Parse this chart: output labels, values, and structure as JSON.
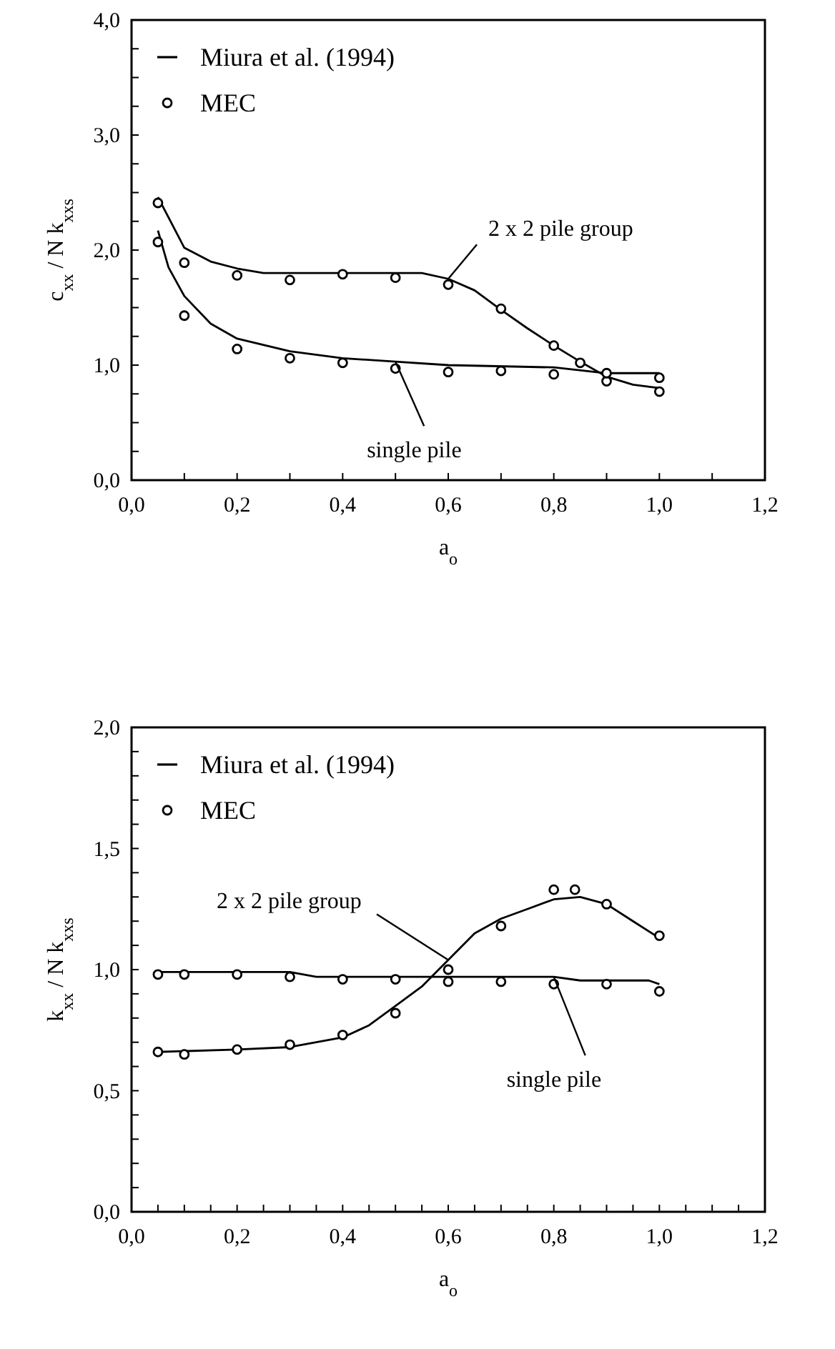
{
  "chart_data": [
    {
      "type": "line",
      "xlabel": "a$_{o}$",
      "ylabel": "c$_{xx}$ / N k$_{xxs}$",
      "xlim": [
        0,
        1.2
      ],
      "ylim": [
        0,
        4
      ],
      "xticks": [
        {
          "value": 0,
          "label": "0,0"
        },
        {
          "value": 0.1,
          "label": null
        },
        {
          "value": 0.2,
          "label": "0,2"
        },
        {
          "value": 0.3,
          "label": null
        },
        {
          "value": 0.4,
          "label": "0,4"
        },
        {
          "value": 0.5,
          "label": null
        },
        {
          "value": 0.6,
          "label": "0,6"
        },
        {
          "value": 0.7,
          "label": null
        },
        {
          "value": 0.8,
          "label": "0,8"
        },
        {
          "value": 0.9,
          "label": null
        },
        {
          "value": 1.0,
          "label": "1,0"
        },
        {
          "value": 1.1,
          "label": null
        },
        {
          "value": 1.2,
          "label": "1,2"
        }
      ],
      "yticks": [
        {
          "value": 0,
          "label": "0,0"
        },
        {
          "value": 0.25,
          "label": null
        },
        {
          "value": 0.5,
          "label": null
        },
        {
          "value": 0.75,
          "label": null
        },
        {
          "value": 1,
          "label": "1,0"
        },
        {
          "value": 1.25,
          "label": null
        },
        {
          "value": 1.5,
          "label": null
        },
        {
          "value": 1.75,
          "label": null
        },
        {
          "value": 2,
          "label": "2,0"
        },
        {
          "value": 2.25,
          "label": null
        },
        {
          "value": 2.5,
          "label": null
        },
        {
          "value": 2.75,
          "label": null
        },
        {
          "value": 3,
          "label": "3,0"
        },
        {
          "value": 3.25,
          "label": null
        },
        {
          "value": 3.5,
          "label": null
        },
        {
          "value": 3.75,
          "label": null
        },
        {
          "value": 4,
          "label": "4,0"
        }
      ],
      "legend": "top left",
      "grid": false,
      "series": [
        {
          "name": "Miura et al. (1994)",
          "marker": "none",
          "color": "#000000",
          "x": [
            0.05,
            0.1,
            0.15,
            0.2,
            0.25,
            0.5,
            0.55,
            0.6,
            0.65,
            0.7,
            0.75,
            0.8,
            0.85,
            0.9,
            0.95,
            1.0
          ],
          "values": [
            2.46,
            2.02,
            1.9,
            1.84,
            1.8,
            1.8,
            1.8,
            1.75,
            1.65,
            1.48,
            1.32,
            1.17,
            1.03,
            0.9,
            0.83,
            0.8
          ]
        },
        {
          "marker": "none",
          "color": "#000000",
          "x": [
            0.05,
            0.07,
            0.1,
            0.15,
            0.2,
            0.3,
            0.4,
            0.5,
            0.6,
            0.8,
            0.9,
            1.0
          ],
          "values": [
            2.17,
            1.85,
            1.6,
            1.36,
            1.23,
            1.12,
            1.06,
            1.03,
            1.0,
            0.98,
            0.93,
            0.93
          ]
        },
        {
          "name": "MEC",
          "type": "scatter",
          "marker": "circle",
          "color": "#000000",
          "x": [
            0.05,
            0.1,
            0.2,
            0.3,
            0.4,
            0.5,
            0.6,
            0.7,
            0.8,
            0.85,
            0.9,
            1.0
          ],
          "values": [
            2.41,
            1.89,
            1.78,
            1.74,
            1.79,
            1.76,
            1.7,
            1.49,
            1.17,
            1.02,
            0.86,
            0.77
          ]
        },
        {
          "type": "scatter",
          "marker": "circle",
          "color": "#000000",
          "x": [
            0.05,
            0.1,
            0.2,
            0.3,
            0.4,
            0.5,
            0.6,
            0.7,
            0.8,
            0.9,
            1.0
          ],
          "values": [
            2.07,
            1.43,
            1.14,
            1.06,
            1.02,
            0.97,
            0.94,
            0.95,
            0.92,
            0.93,
            0.89
          ]
        }
      ],
      "annotations": [
        {
          "text": "2 x 2 pile group",
          "x": 0.6,
          "y": 1.75
        },
        {
          "text": "single pile",
          "x": 0.5,
          "y": 1.03
        }
      ]
    },
    {
      "type": "line",
      "xlabel": "a$_{o}$",
      "ylabel": "k$_{xx}$ / N k$_{xxs}$",
      "xlim": [
        0,
        1.2
      ],
      "ylim": [
        0,
        2
      ],
      "xticks": [
        {
          "value": 0,
          "label": "0,0"
        },
        {
          "value": 0.05,
          "label": null
        },
        {
          "value": 0.1,
          "label": null
        },
        {
          "value": 0.15,
          "label": null
        },
        {
          "value": 0.2,
          "label": "0,2"
        },
        {
          "value": 0.25,
          "label": null
        },
        {
          "value": 0.3,
          "label": null
        },
        {
          "value": 0.35,
          "label": null
        },
        {
          "value": 0.4,
          "label": "0,4"
        },
        {
          "value": 0.45,
          "label": null
        },
        {
          "value": 0.5,
          "label": null
        },
        {
          "value": 0.55,
          "label": null
        },
        {
          "value": 0.6,
          "label": "0,6"
        },
        {
          "value": 0.65,
          "label": null
        },
        {
          "value": 0.7,
          "label": null
        },
        {
          "value": 0.75,
          "label": null
        },
        {
          "value": 0.8,
          "label": "0,8"
        },
        {
          "value": 0.85,
          "label": null
        },
        {
          "value": 0.9,
          "label": null
        },
        {
          "value": 0.95,
          "label": null
        },
        {
          "value": 1.0,
          "label": "1,0"
        },
        {
          "value": 1.05,
          "label": null
        },
        {
          "value": 1.1,
          "label": null
        },
        {
          "value": 1.15,
          "label": null
        },
        {
          "value": 1.2,
          "label": "1,2"
        }
      ],
      "yticks": [
        {
          "value": 0,
          "label": "0,0"
        },
        {
          "value": 0.1,
          "label": null
        },
        {
          "value": 0.2,
          "label": null
        },
        {
          "value": 0.3,
          "label": null
        },
        {
          "value": 0.4,
          "label": null
        },
        {
          "value": 0.5,
          "label": "0,5"
        },
        {
          "value": 0.6,
          "label": null
        },
        {
          "value": 0.7,
          "label": null
        },
        {
          "value": 0.8,
          "label": null
        },
        {
          "value": 0.9,
          "label": null
        },
        {
          "value": 1,
          "label": "1,0"
        },
        {
          "value": 1.1,
          "label": null
        },
        {
          "value": 1.2,
          "label": null
        },
        {
          "value": 1.3,
          "label": null
        },
        {
          "value": 1.4,
          "label": null
        },
        {
          "value": 1.5,
          "label": "1,5"
        },
        {
          "value": 1.6,
          "label": null
        },
        {
          "value": 1.7,
          "label": null
        },
        {
          "value": 1.8,
          "label": null
        },
        {
          "value": 1.9,
          "label": null
        },
        {
          "value": 2,
          "label": "2,0"
        }
      ],
      "legend": "top left",
      "grid": false,
      "series": [
        {
          "name": "Miura et al. (1994)",
          "marker": "none",
          "color": "#000000",
          "x": [
            0.05,
            0.2,
            0.3,
            0.4,
            0.45,
            0.5,
            0.55,
            0.6,
            0.65,
            0.7,
            0.75,
            0.8,
            0.85,
            0.9,
            0.95,
            1.0
          ],
          "values": [
            0.66,
            0.67,
            0.68,
            0.72,
            0.77,
            0.85,
            0.93,
            1.04,
            1.15,
            1.21,
            1.25,
            1.29,
            1.3,
            1.27,
            1.2,
            1.13
          ]
        },
        {
          "marker": "none",
          "color": "#000000",
          "x": [
            0.05,
            0.3,
            0.35,
            0.8,
            0.85,
            0.98,
            1.0
          ],
          "values": [
            0.99,
            0.99,
            0.97,
            0.97,
            0.955,
            0.955,
            0.94
          ]
        },
        {
          "name": "MEC",
          "type": "scatter",
          "marker": "circle",
          "color": "#000000",
          "x": [
            0.05,
            0.1,
            0.2,
            0.3,
            0.4,
            0.5,
            0.6,
            0.7,
            0.8,
            0.84,
            0.9,
            1.0
          ],
          "values": [
            0.66,
            0.65,
            0.67,
            0.69,
            0.73,
            0.82,
            1.0,
            1.18,
            1.33,
            1.33,
            1.27,
            1.14
          ]
        },
        {
          "type": "scatter",
          "marker": "circle",
          "color": "#000000",
          "x": [
            0.05,
            0.1,
            0.2,
            0.3,
            0.4,
            0.5,
            0.6,
            0.7,
            0.8,
            0.9,
            1.0
          ],
          "values": [
            0.98,
            0.98,
            0.98,
            0.97,
            0.96,
            0.96,
            0.95,
            0.95,
            0.94,
            0.94,
            0.91
          ]
        }
      ],
      "annotations": [
        {
          "text": "2 x 2 pile group",
          "x": 0.6,
          "y": 1.04
        },
        {
          "text": "single pile",
          "x": 0.8,
          "y": 0.97
        }
      ]
    }
  ]
}
